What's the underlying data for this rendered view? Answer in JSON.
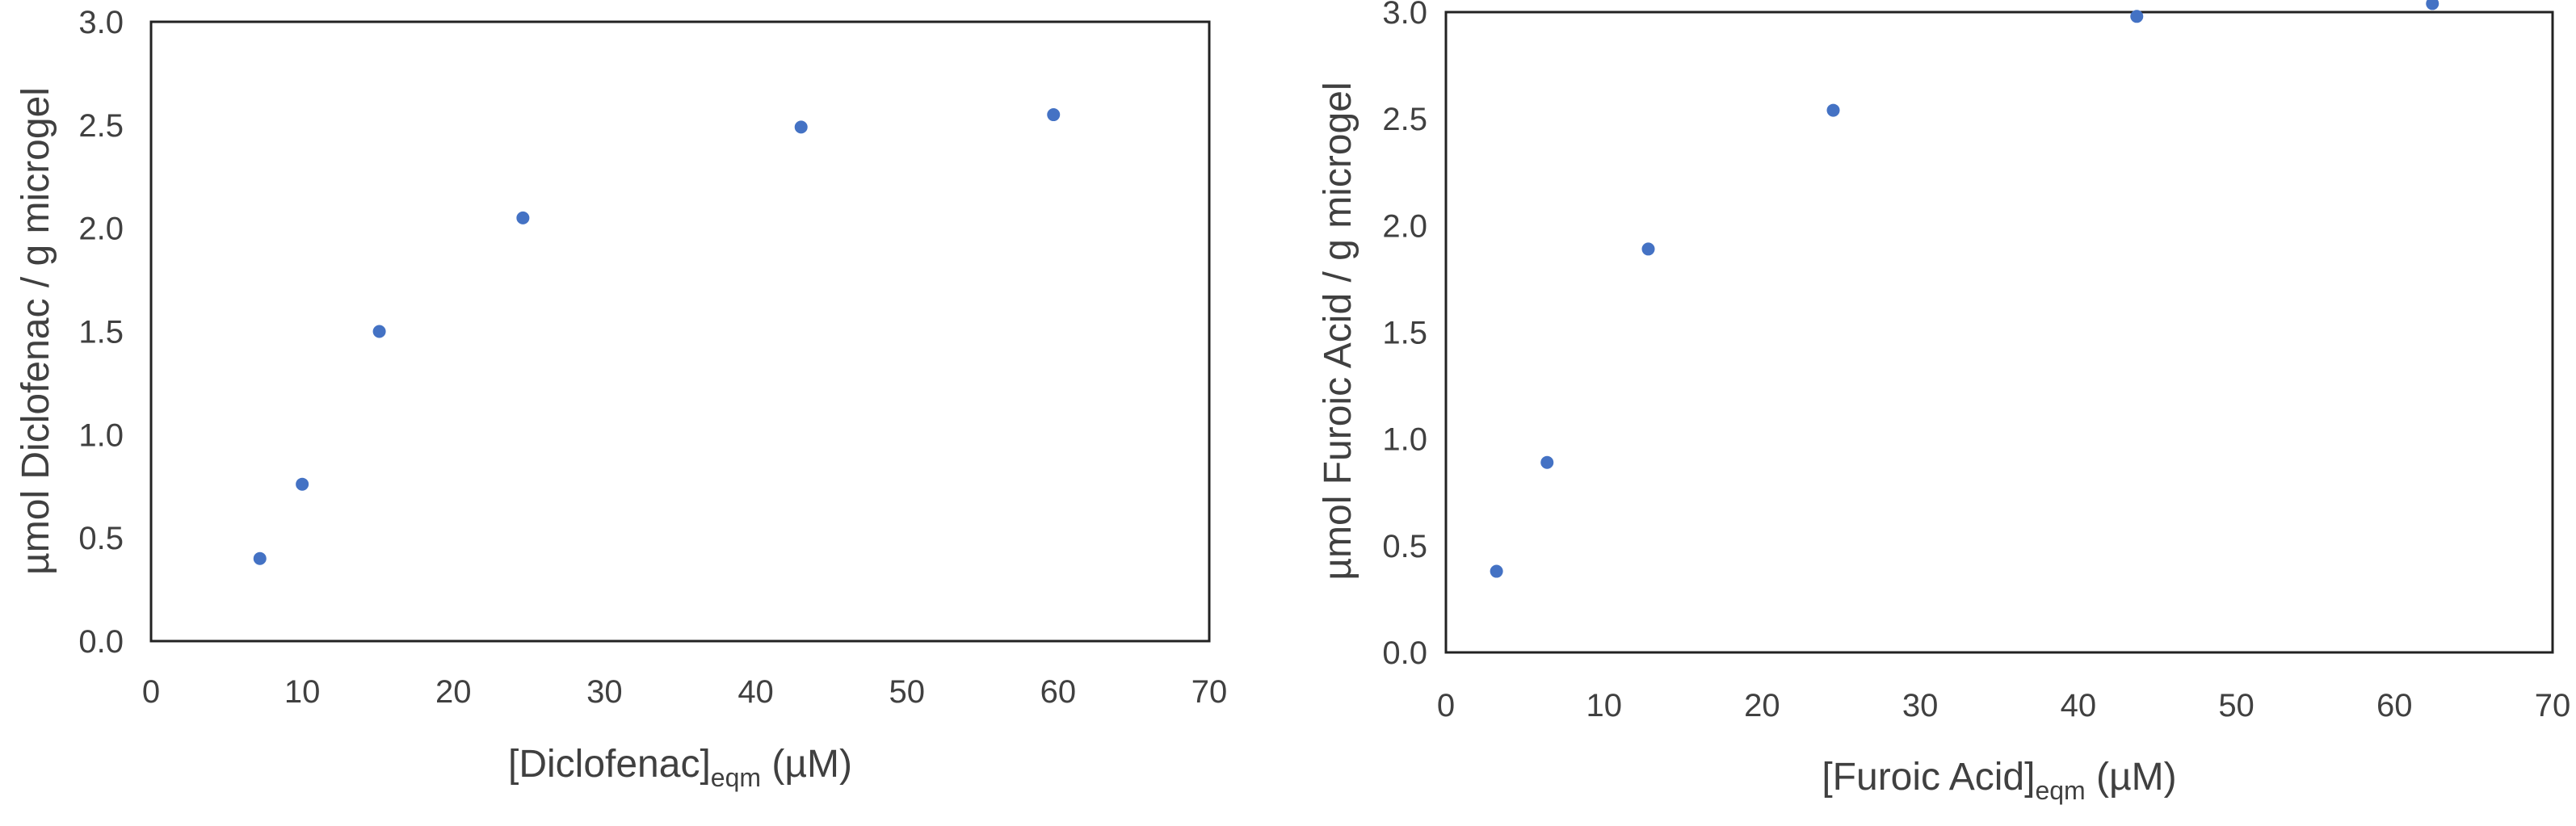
{
  "chart_data": [
    {
      "type": "scatter",
      "ylabel": "µmol Diclofenac / g microgel",
      "xlabel": {
        "prefix": "[Diclofenac]",
        "subscript": "eqm",
        "suffix": " (µM)"
      },
      "xlim": [
        0,
        70
      ],
      "ylim": [
        0,
        3.0
      ],
      "xticks": [
        "0",
        "10",
        "20",
        "30",
        "40",
        "50",
        "60",
        "70"
      ],
      "yticks": [
        "0.0",
        "0.5",
        "1.0",
        "1.5",
        "2.0",
        "2.5",
        "3.0"
      ],
      "grid": false,
      "marker_color": "#4472C4",
      "points": [
        {
          "x": 7.2,
          "y": 0.4
        },
        {
          "x": 10.0,
          "y": 0.76
        },
        {
          "x": 15.1,
          "y": 1.5
        },
        {
          "x": 24.6,
          "y": 2.05
        },
        {
          "x": 43.0,
          "y": 2.49
        },
        {
          "x": 59.7,
          "y": 2.55
        }
      ]
    },
    {
      "type": "scatter",
      "ylabel": "µmol Furoic Acid / g microgel",
      "xlabel": {
        "prefix": "[Furoic Acid]",
        "subscript": "eqm",
        "suffix": " (µM)"
      },
      "xlim": [
        0,
        70
      ],
      "ylim": [
        0,
        3.0
      ],
      "xticks": [
        "0",
        "10",
        "20",
        "30",
        "40",
        "50",
        "60",
        "70"
      ],
      "yticks": [
        "0.0",
        "0.5",
        "1.0",
        "1.5",
        "2.0",
        "2.5",
        "3.0"
      ],
      "grid": false,
      "marker_color": "#4472C4",
      "points": [
        {
          "x": 3.2,
          "y": 0.38
        },
        {
          "x": 6.4,
          "y": 0.89
        },
        {
          "x": 12.8,
          "y": 1.89
        },
        {
          "x": 24.5,
          "y": 2.54
        },
        {
          "x": 43.7,
          "y": 2.98
        },
        {
          "x": 62.4,
          "y": 3.04
        }
      ]
    }
  ]
}
